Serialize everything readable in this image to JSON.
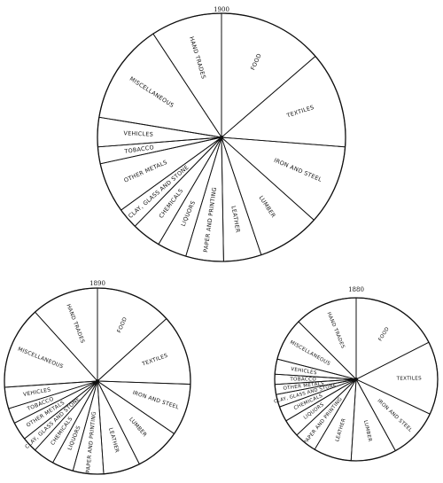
{
  "chart_data": [
    {
      "type": "pie",
      "title": "1900",
      "slices": [
        {
          "label": "FOOD",
          "value": 12.5
        },
        {
          "label": "TEXTILES",
          "value": 11.5
        },
        {
          "label": "IRON AND STEEL",
          "value": 9.5
        },
        {
          "label": "LUMBER",
          "value": 7.5
        },
        {
          "label": "LEATHER",
          "value": 4.5
        },
        {
          "label": "PAPER AND PRINTING",
          "value": 4.5
        },
        {
          "label": "LIQUORS",
          "value": 3.5
        },
        {
          "label": "CHEMICALS",
          "value": 3.5
        },
        {
          "label": "CLAY, GLASS AND STONE",
          "value": 2.5
        },
        {
          "label": "OTHER METALS",
          "value": 6
        },
        {
          "label": "TOBACCO",
          "value": 2
        },
        {
          "label": "VEHICLES",
          "value": 3.5
        },
        {
          "label": "MISCELLANEOUS",
          "value": 12
        },
        {
          "label": "HAND TRADES",
          "value": 8.5
        }
      ]
    },
    {
      "type": "pie",
      "title": "1890",
      "slices": [
        {
          "label": "FOOD",
          "value": 12.5
        },
        {
          "label": "TEXTILES",
          "value": 11.5
        },
        {
          "label": "IRON AND STEEL",
          "value": 8.5
        },
        {
          "label": "LUMBER",
          "value": 7.5
        },
        {
          "label": "LEATHER",
          "value": 6
        },
        {
          "label": "PAPER AND PRINTING",
          "value": 5
        },
        {
          "label": "LIQUORS",
          "value": 3.5
        },
        {
          "label": "CHEMICALS",
          "value": 3.5
        },
        {
          "label": "CLAY, GLASS AND STONE",
          "value": 2.5
        },
        {
          "label": "OTHER METALS",
          "value": 3
        },
        {
          "label": "TOBACCO",
          "value": 2.5
        },
        {
          "label": "VEHICLES",
          "value": 3.5
        },
        {
          "label": "MISCELLANEOUS",
          "value": 13.5
        },
        {
          "label": "HAND TRADES",
          "value": 11
        }
      ]
    },
    {
      "type": "pie",
      "title": "1880",
      "slices": [
        {
          "label": "FOOD",
          "value": 17.5
        },
        {
          "label": "TEXTILES",
          "value": 14.5
        },
        {
          "label": "IRON AND STEEL",
          "value": 10
        },
        {
          "label": "LUMBER",
          "value": 9
        },
        {
          "label": "LEATHER",
          "value": 7.5
        },
        {
          "label": "PAPER AND PRINTING",
          "value": 4.5
        },
        {
          "label": "LIQUORS",
          "value": 3.5
        },
        {
          "label": "CHEMICALS",
          "value": 3
        },
        {
          "label": "CLAY, GLASS AND STONE",
          "value": 2.5
        },
        {
          "label": "OTHER METALS",
          "value": 2
        },
        {
          "label": "TOBACCO",
          "value": 2
        },
        {
          "label": "VEHICLES",
          "value": 3
        },
        {
          "label": "MISCELLANEOUS",
          "value": 8.5
        },
        {
          "label": "HAND TRADES",
          "value": 12.5
        }
      ]
    }
  ],
  "colors": {
    "ink": "#111111",
    "background": "#ffffff"
  }
}
